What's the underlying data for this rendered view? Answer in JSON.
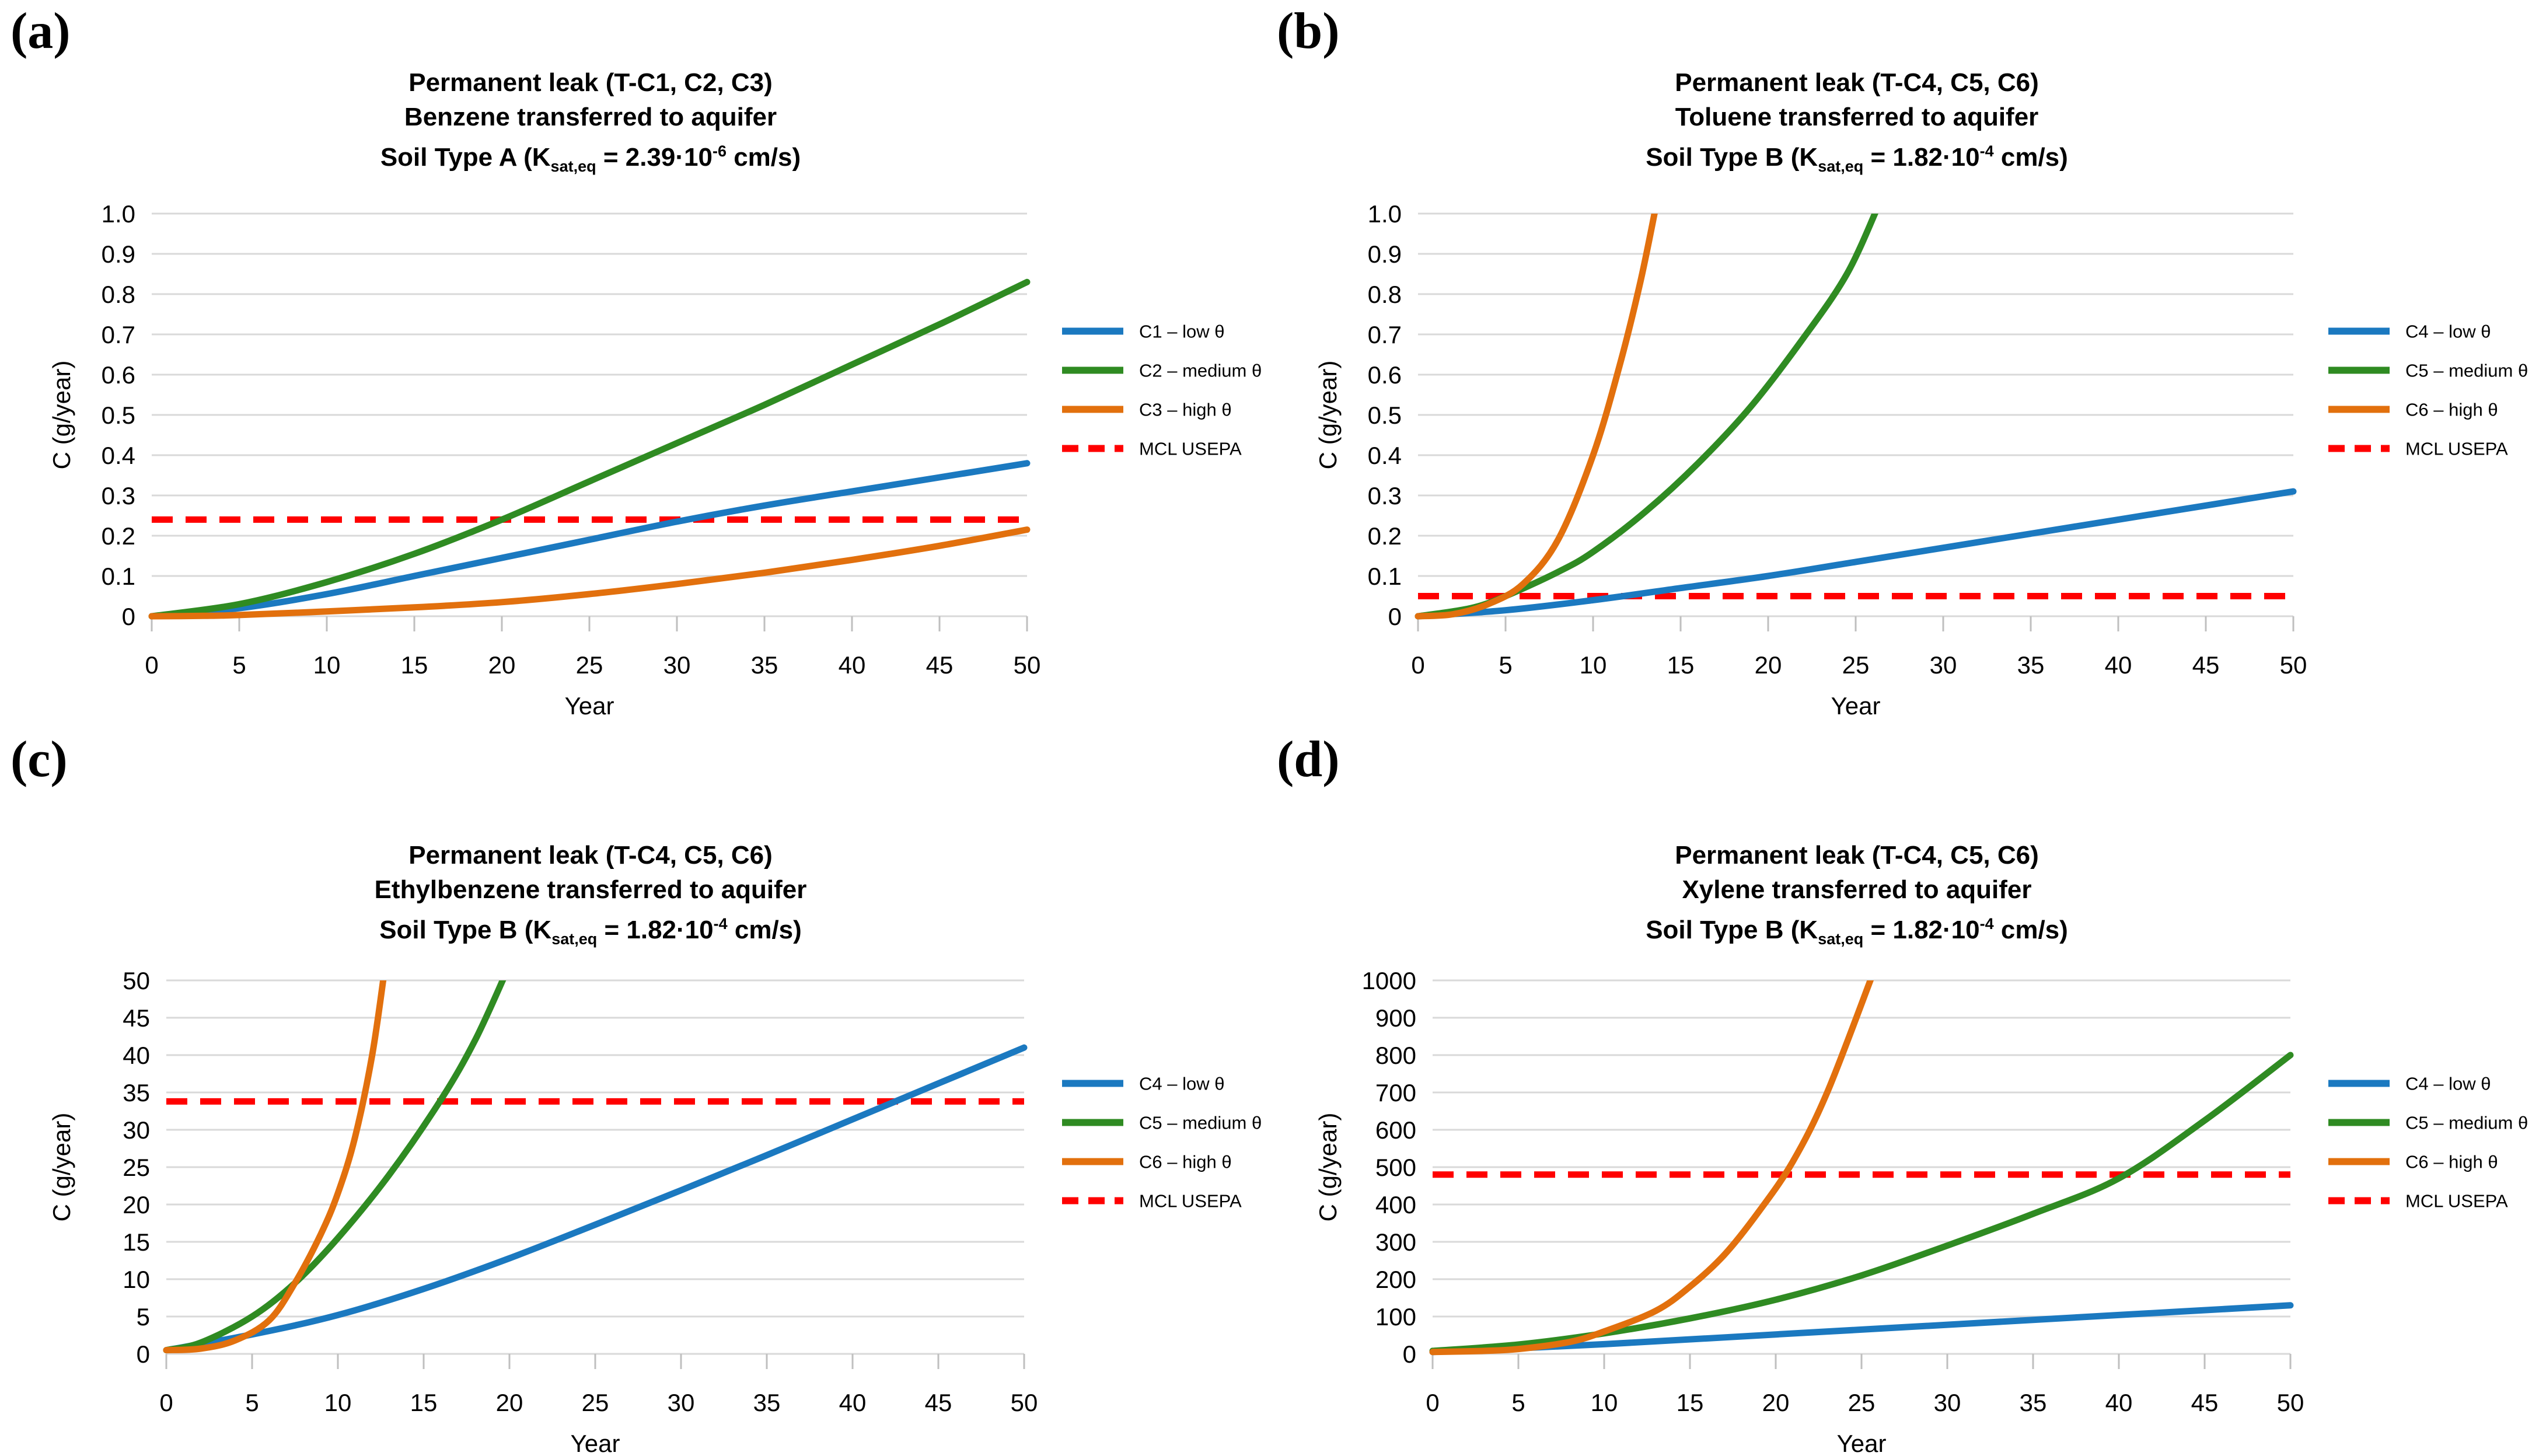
{
  "figure": {
    "background": "#FFFFFF",
    "grid_color": "#D9D9D9",
    "tick_color": "#BFBFBF",
    "text_color": "#000000"
  },
  "chart_data": [
    {
      "type": "line",
      "id": "a",
      "panel_label": "(a)",
      "title_lines": [
        "Permanent leak (T-C1, C2, C3)",
        "Benzene transferred to aquifer"
      ],
      "subtitle": {
        "pre": "Soil Type A (K",
        "sub": "sat,eq",
        "mid": " = 2.39·10",
        "sup": "-6",
        "post": " cm/s)"
      },
      "xlabel": "Year",
      "ylabel": "C (g/year)",
      "xlim": [
        0,
        50
      ],
      "xticks": [
        0,
        5,
        10,
        15,
        20,
        25,
        30,
        35,
        40,
        45,
        50
      ],
      "ylim": [
        0,
        1
      ],
      "yticks": [
        [
          1.0,
          "1.0"
        ],
        [
          0.9,
          "0.9"
        ],
        [
          0.8,
          "0.8"
        ],
        [
          0.7,
          "0.7"
        ],
        [
          0.6,
          "0.6"
        ],
        [
          0.5,
          "0.5"
        ],
        [
          0.4,
          "0.4"
        ],
        [
          0.3,
          "0.3"
        ],
        [
          0.2,
          "0.2"
        ],
        [
          0.1,
          "0.1"
        ],
        [
          0,
          "0"
        ]
      ],
      "grid": "horizontal",
      "legend_position": "right",
      "series": [
        {
          "name": "C1 – low θ",
          "color": "#1B79C0",
          "points": [
            [
              0,
              0
            ],
            [
              5,
              0.02
            ],
            [
              10,
              0.055
            ],
            [
              15,
              0.1
            ],
            [
              20,
              0.145
            ],
            [
              25,
              0.19
            ],
            [
              30,
              0.235
            ],
            [
              35,
              0.275
            ],
            [
              40,
              0.31
            ],
            [
              45,
              0.345
            ],
            [
              50,
              0.38
            ]
          ]
        },
        {
          "name": "C2 – medium θ",
          "color": "#2F8B22",
          "points": [
            [
              0,
              0
            ],
            [
              5,
              0.03
            ],
            [
              10,
              0.085
            ],
            [
              15,
              0.155
            ],
            [
              20,
              0.24
            ],
            [
              25,
              0.335
            ],
            [
              30,
              0.43
            ],
            [
              35,
              0.525
            ],
            [
              40,
              0.625
            ],
            [
              45,
              0.725
            ],
            [
              50,
              0.83
            ]
          ]
        },
        {
          "name": "C3 – high θ",
          "color": "#E2700D",
          "points": [
            [
              0,
              0
            ],
            [
              3,
              0.001
            ],
            [
              5,
              0.003
            ],
            [
              10,
              0.012
            ],
            [
              15,
              0.022
            ],
            [
              20,
              0.035
            ],
            [
              25,
              0.055
            ],
            [
              30,
              0.08
            ],
            [
              35,
              0.108
            ],
            [
              40,
              0.14
            ],
            [
              45,
              0.175
            ],
            [
              50,
              0.215
            ]
          ]
        }
      ],
      "threshold": {
        "name": "MCL USEPA",
        "value": 0.24,
        "color": "#FF0000",
        "style": "dashed"
      }
    },
    {
      "type": "line",
      "id": "b",
      "panel_label": "(b)",
      "title_lines": [
        "Permanent leak (T-C4, C5, C6)",
        "Toluene transferred to aquifer"
      ],
      "subtitle": {
        "pre": "Soil Type B (K",
        "sub": "sat,eq",
        "mid": " = 1.82·10",
        "sup": "-4",
        "post": " cm/s)"
      },
      "xlabel": "Year",
      "ylabel": "C (g/year)",
      "xlim": [
        0,
        50
      ],
      "xticks": [
        0,
        5,
        10,
        15,
        20,
        25,
        30,
        35,
        40,
        45,
        50
      ],
      "ylim": [
        0,
        1
      ],
      "yticks": [
        [
          1.0,
          "1.0"
        ],
        [
          0.9,
          "0.9"
        ],
        [
          0.8,
          "0.8"
        ],
        [
          0.7,
          "0.7"
        ],
        [
          0.6,
          "0.6"
        ],
        [
          0.5,
          "0.5"
        ],
        [
          0.4,
          "0.4"
        ],
        [
          0.3,
          "0.3"
        ],
        [
          0.2,
          "0.2"
        ],
        [
          0.1,
          "0.1"
        ],
        [
          0,
          "0"
        ]
      ],
      "grid": "horizontal",
      "legend_position": "right",
      "series": [
        {
          "name": "C4 – low θ",
          "color": "#1B79C0",
          "points": [
            [
              0,
              0
            ],
            [
              5,
              0.015
            ],
            [
              10,
              0.04
            ],
            [
              15,
              0.07
            ],
            [
              20,
              0.1
            ],
            [
              25,
              0.135
            ],
            [
              30,
              0.17
            ],
            [
              35,
              0.205
            ],
            [
              40,
              0.24
            ],
            [
              45,
              0.275
            ],
            [
              50,
              0.31
            ]
          ]
        },
        {
          "name": "C5 – medium θ",
          "color": "#2F8B22",
          "points": [
            [
              0,
              0
            ],
            [
              3,
              0.02
            ],
            [
              5,
              0.05
            ],
            [
              8,
              0.11
            ],
            [
              10,
              0.16
            ],
            [
              13,
              0.26
            ],
            [
              16,
              0.38
            ],
            [
              19,
              0.52
            ],
            [
              22,
              0.69
            ],
            [
              24.5,
              0.85
            ],
            [
              26.3,
              1.02
            ]
          ]
        },
        {
          "name": "C6 – high θ",
          "color": "#E2700D",
          "points": [
            [
              0,
              0
            ],
            [
              2,
              0.005
            ],
            [
              4,
              0.03
            ],
            [
              6,
              0.08
            ],
            [
              8,
              0.19
            ],
            [
              10,
              0.4
            ],
            [
              11.5,
              0.62
            ],
            [
              12.7,
              0.83
            ],
            [
              13.6,
              1.02
            ]
          ]
        }
      ],
      "threshold": {
        "name": "MCL USEPA",
        "value": 0.05,
        "color": "#FF0000",
        "style": "dashed"
      }
    },
    {
      "type": "line",
      "id": "c",
      "panel_label": "(c)",
      "title_lines": [
        "Permanent leak (T-C4, C5, C6)",
        "Ethylbenzene transferred to aquifer"
      ],
      "subtitle": {
        "pre": "Soil Type B (K",
        "sub": "sat,eq",
        "mid": " = 1.82·10",
        "sup": "-4",
        "post": " cm/s)"
      },
      "xlabel": "Year",
      "ylabel": "C (g/year)",
      "xlim": [
        0,
        50
      ],
      "xticks": [
        0,
        5,
        10,
        15,
        20,
        25,
        30,
        35,
        40,
        45,
        50
      ],
      "ylim": [
        0,
        50
      ],
      "yticks": [
        [
          50,
          "50"
        ],
        [
          45,
          "45"
        ],
        [
          40,
          "40"
        ],
        [
          35,
          "35"
        ],
        [
          30,
          "30"
        ],
        [
          25,
          "25"
        ],
        [
          20,
          "20"
        ],
        [
          15,
          "15"
        ],
        [
          10,
          "10"
        ],
        [
          5,
          "5"
        ],
        [
          0,
          "0"
        ]
      ],
      "grid": "horizontal",
      "legend_position": "right",
      "series": [
        {
          "name": "C4 – low θ",
          "color": "#1B79C0",
          "points": [
            [
              0,
              0.5
            ],
            [
              5,
              2.6
            ],
            [
              10,
              5.2
            ],
            [
              15,
              8.7
            ],
            [
              20,
              12.8
            ],
            [
              25,
              17.3
            ],
            [
              30,
              21.9
            ],
            [
              35,
              26.6
            ],
            [
              40,
              31.4
            ],
            [
              45,
              36.2
            ],
            [
              50,
              41
            ]
          ]
        },
        {
          "name": "C5 – medium θ",
          "color": "#2F8B22",
          "points": [
            [
              0,
              0.5
            ],
            [
              2,
              1.5
            ],
            [
              5,
              5
            ],
            [
              7.5,
              9.5
            ],
            [
              10,
              15.5
            ],
            [
              13,
              24
            ],
            [
              16,
              34
            ],
            [
              18,
              42
            ],
            [
              19.8,
              51
            ]
          ]
        },
        {
          "name": "C6 – high θ",
          "color": "#E2700D",
          "points": [
            [
              0,
              0.5
            ],
            [
              2,
              0.7
            ],
            [
              4,
              1.8
            ],
            [
              6,
              4.5
            ],
            [
              7.5,
              9.5
            ],
            [
              9,
              16
            ],
            [
              10,
              21.5
            ],
            [
              11,
              29
            ],
            [
              12,
              40
            ],
            [
              12.7,
              51
            ]
          ]
        }
      ],
      "threshold": {
        "name": "MCL USEPA",
        "value": 33.8,
        "color": "#FF0000",
        "style": "dashed"
      }
    },
    {
      "type": "line",
      "id": "d",
      "panel_label": "(d)",
      "title_lines": [
        "Permanent leak (T-C4, C5, C6)",
        "Xylene transferred to aquifer"
      ],
      "subtitle": {
        "pre": "Soil Type B (K",
        "sub": "sat,eq",
        "mid": " = 1.82·10",
        "sup": "-4",
        "post": " cm/s)"
      },
      "xlabel": "Year",
      "ylabel": "C (g/year)",
      "xlim": [
        0,
        50
      ],
      "xticks": [
        0,
        5,
        10,
        15,
        20,
        25,
        30,
        35,
        40,
        45,
        50
      ],
      "ylim": [
        0,
        1000
      ],
      "yticks": [
        [
          1000,
          "1000"
        ],
        [
          900,
          "900"
        ],
        [
          800,
          "800"
        ],
        [
          700,
          "700"
        ],
        [
          600,
          "600"
        ],
        [
          500,
          "500"
        ],
        [
          400,
          "400"
        ],
        [
          300,
          "300"
        ],
        [
          200,
          "200"
        ],
        [
          100,
          "100"
        ],
        [
          0,
          "0"
        ]
      ],
      "grid": "horizontal",
      "legend_position": "right",
      "series": [
        {
          "name": "C4 – low θ",
          "color": "#1B79C0",
          "points": [
            [
              0,
              5
            ],
            [
              10,
              26
            ],
            [
              20,
              52
            ],
            [
              30,
              78
            ],
            [
              40,
              104
            ],
            [
              50,
              130
            ]
          ]
        },
        {
          "name": "C5 – medium θ",
          "color": "#2F8B22",
          "points": [
            [
              0,
              8
            ],
            [
              5,
              25
            ],
            [
              10,
              55
            ],
            [
              15,
              95
            ],
            [
              20,
              145
            ],
            [
              25,
              210
            ],
            [
              30,
              290
            ],
            [
              35,
              375
            ],
            [
              40,
              470
            ],
            [
              45,
              625
            ],
            [
              50,
              800
            ]
          ]
        },
        {
          "name": "C6 – high θ",
          "color": "#E2700D",
          "points": [
            [
              0,
              5
            ],
            [
              3,
              8
            ],
            [
              5,
              13
            ],
            [
              8,
              32
            ],
            [
              10,
              60
            ],
            [
              13,
              115
            ],
            [
              15,
              180
            ],
            [
              17,
              265
            ],
            [
              19,
              380
            ],
            [
              21,
              515
            ],
            [
              23,
              700
            ],
            [
              25.6,
              1010
            ]
          ]
        }
      ],
      "threshold": {
        "name": "MCL USEPA",
        "value": 480,
        "color": "#FF0000",
        "style": "dashed"
      }
    }
  ]
}
